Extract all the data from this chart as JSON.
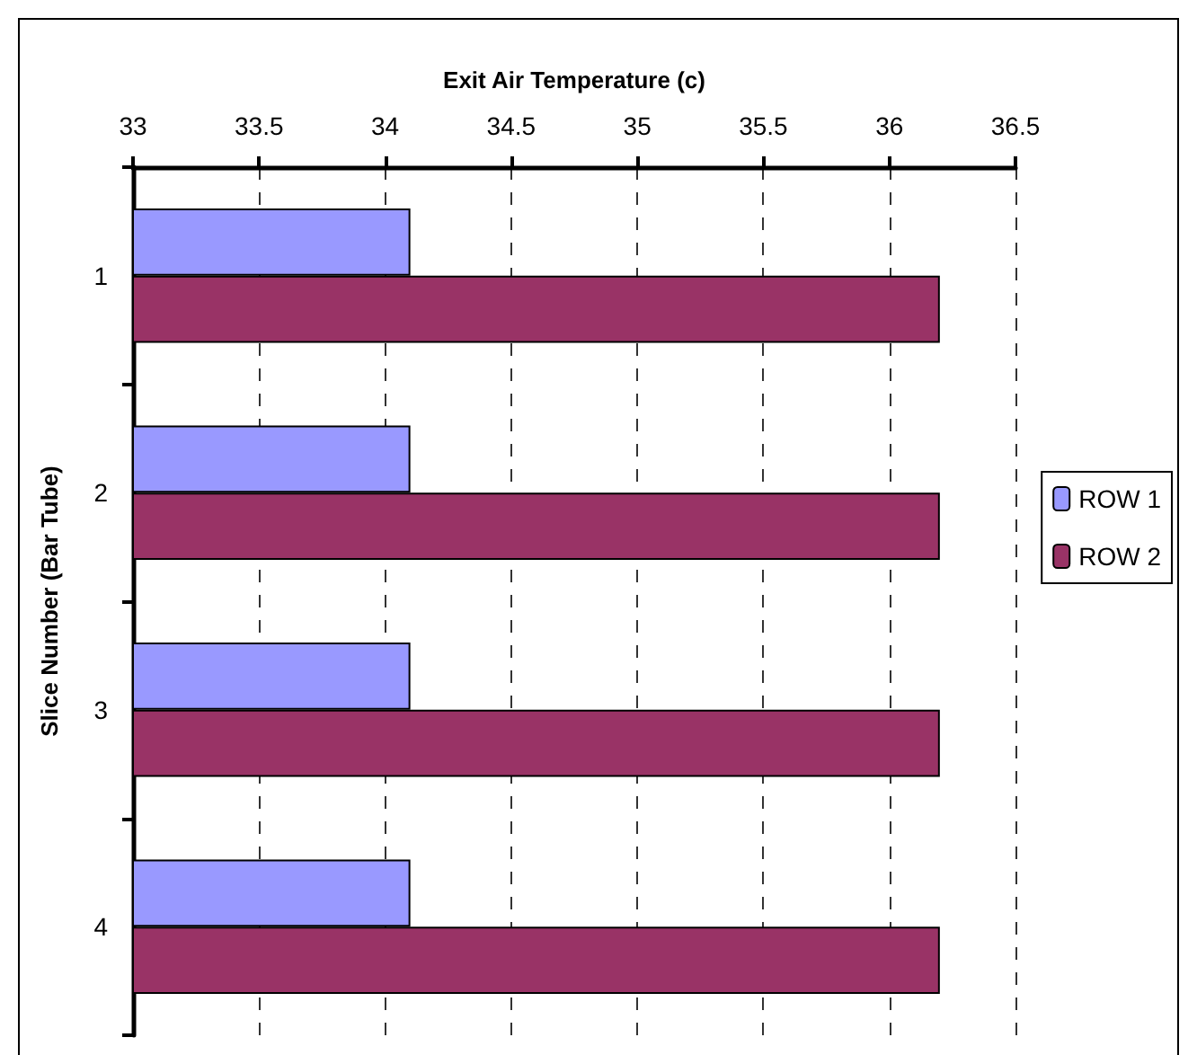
{
  "chart_data": {
    "type": "bar",
    "orientation": "horizontal",
    "xlabel": "Exit Air Temperature (c)",
    "ylabel": "Slice Number (Bar Tube)",
    "categories": [
      "1",
      "2",
      "3",
      "4"
    ],
    "series": [
      {
        "name": "ROW 1",
        "color": "#9999ff",
        "values": [
          34.1,
          34.1,
          34.1,
          34.1
        ]
      },
      {
        "name": "ROW 2",
        "color": "#993366",
        "values": [
          36.2,
          36.2,
          36.2,
          36.2
        ]
      }
    ],
    "xlim": [
      33,
      36.5
    ],
    "xticks": [
      33,
      33.5,
      34,
      34.5,
      35,
      35.5,
      36,
      36.5
    ],
    "grid": "x",
    "legend": "right"
  }
}
